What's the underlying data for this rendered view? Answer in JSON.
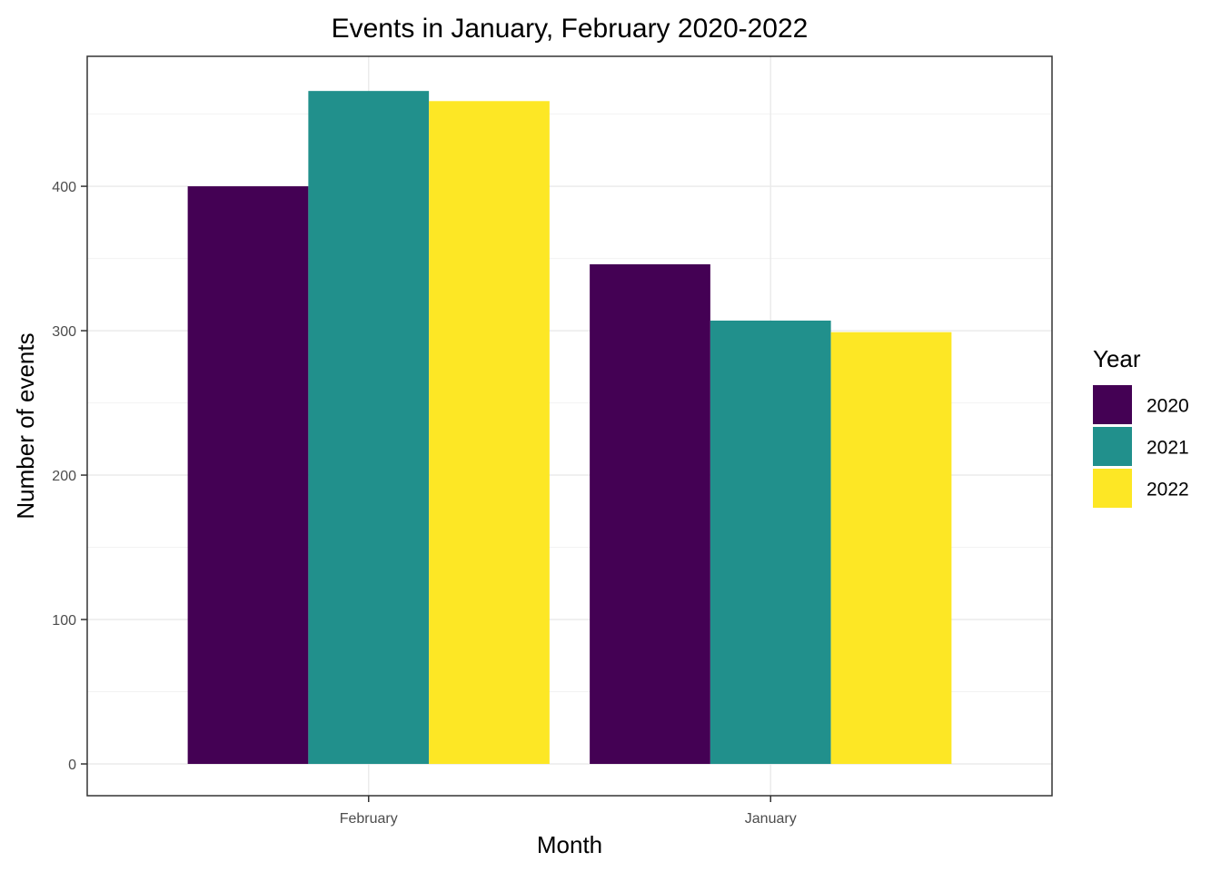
{
  "chart_data": {
    "type": "bar",
    "title": "Events in January, February 2020-2022",
    "xlabel": "Month",
    "ylabel": "Number of events",
    "categories": [
      "February",
      "January"
    ],
    "series": [
      {
        "name": "2020",
        "values": [
          400,
          346
        ],
        "color": "#440154"
      },
      {
        "name": "2021",
        "values": [
          466,
          307
        ],
        "color": "#21908C"
      },
      {
        "name": "2022",
        "values": [
          459,
          299
        ],
        "color": "#FDE725"
      }
    ],
    "ylim": [
      -22,
      490
    ],
    "yticks": [
      0,
      100,
      200,
      300,
      400
    ],
    "ytick_labels": [
      "0",
      "100",
      "200",
      "300",
      "400"
    ],
    "grid": true,
    "legend": {
      "title": "Year",
      "position": "right"
    }
  }
}
